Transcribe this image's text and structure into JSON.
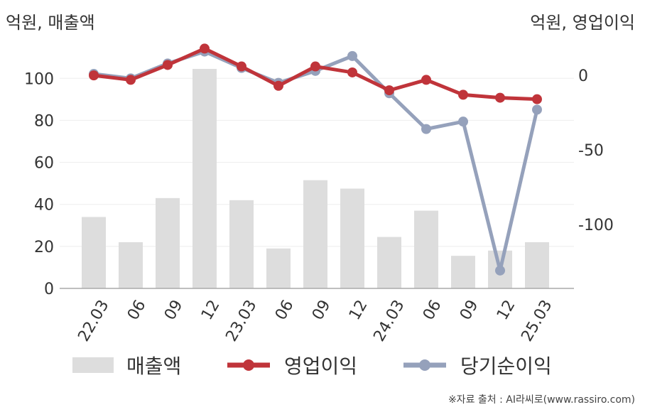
{
  "units": {
    "left": "억원, 매출액",
    "right": "억원, 영업이익"
  },
  "source": "※자료 출처 : AI라씨로(www.rassiro.com)",
  "colors": {
    "bar": "#dddddd",
    "operating": "#c0343a",
    "net": "#95a1bb"
  },
  "chart_data": {
    "type": "bar",
    "categories": [
      "22.03",
      "06",
      "09",
      "12",
      "23.03",
      "06",
      "09",
      "12",
      "24.03",
      "06",
      "09",
      "12",
      "25.03"
    ],
    "left_axis": {
      "ylim": [
        0,
        117
      ],
      "ticks": [
        0,
        20,
        40,
        60,
        80,
        100
      ]
    },
    "right_axis": {
      "ylim": [
        -143,
        22
      ],
      "ticks": [
        0,
        -50,
        -100
      ]
    },
    "series": [
      {
        "name": "매출액",
        "type": "bar",
        "axis": "left",
        "values": [
          34,
          22,
          43,
          104.5,
          42,
          19,
          51.5,
          47.5,
          24.5,
          37,
          15.5,
          18,
          22
        ]
      },
      {
        "name": "영업이익",
        "type": "line",
        "axis": "right",
        "values": [
          0,
          -3,
          7,
          18,
          6,
          -7,
          6,
          2,
          -10,
          -3,
          -13,
          -15,
          -16
        ]
      },
      {
        "name": "당기순이익",
        "type": "line",
        "axis": "right",
        "values": [
          1,
          -2,
          8,
          16,
          5,
          -5,
          3,
          13,
          -12,
          -36,
          -31,
          -131,
          -23
        ]
      }
    ],
    "legend": [
      "매출액",
      "영업이익",
      "당기순이익"
    ],
    "legend_position": "bottom",
    "grid": true
  }
}
